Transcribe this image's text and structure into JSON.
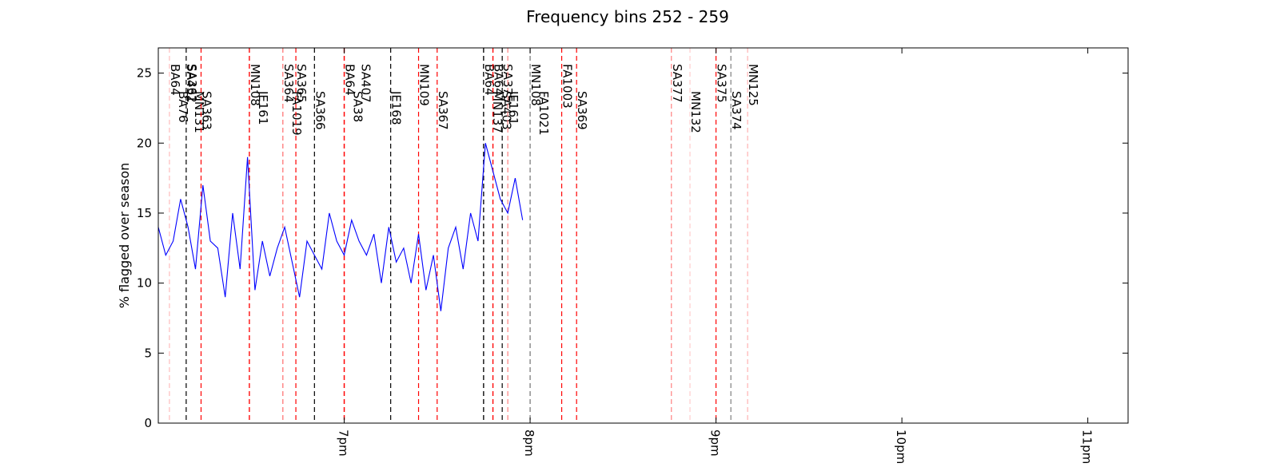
{
  "chart_data": {
    "type": "line",
    "title": "Frequency bins 252 - 259",
    "xlabel": "",
    "ylabel": "% flagged over season",
    "ylim": [
      0,
      26.8
    ],
    "xlim": [
      "18:00",
      "23:13"
    ],
    "yticks": [
      0,
      5,
      10,
      15,
      20,
      25
    ],
    "ytick_labels": [
      "0",
      "5",
      "10",
      "15",
      "20",
      "25"
    ],
    "xticks": [
      "19:00",
      "20:00",
      "21:00",
      "22:00",
      "23:00"
    ],
    "xtick_labels": [
      "7pm",
      "8pm",
      "9pm",
      "10pm",
      "11pm"
    ],
    "grid": false,
    "line_color": "#0000ff",
    "series": [
      {
        "values": [
          [
            18.0,
            14.0
          ],
          [
            18.04,
            12.0
          ],
          [
            18.08,
            13.0
          ],
          [
            18.12,
            16.0
          ],
          [
            18.16,
            14.0
          ],
          [
            18.2,
            11.0
          ],
          [
            18.24,
            17.0
          ],
          [
            18.28,
            13.0
          ],
          [
            18.32,
            12.5
          ],
          [
            18.36,
            9.0
          ],
          [
            18.4,
            15.0
          ],
          [
            18.44,
            11.0
          ],
          [
            18.48,
            19.0
          ],
          [
            18.52,
            9.5
          ],
          [
            18.56,
            13.0
          ],
          [
            18.6,
            10.5
          ],
          [
            18.64,
            12.5
          ],
          [
            18.68,
            14.0
          ],
          [
            18.72,
            11.5
          ],
          [
            18.76,
            9.0
          ],
          [
            18.8,
            13.0
          ],
          [
            18.84,
            12.0
          ],
          [
            18.88,
            11.0
          ],
          [
            18.92,
            15.0
          ],
          [
            18.96,
            13.0
          ],
          [
            19.0,
            12.0
          ],
          [
            19.04,
            14.5
          ],
          [
            19.08,
            13.0
          ],
          [
            19.12,
            12.0
          ],
          [
            19.16,
            13.5
          ],
          [
            19.2,
            10.0
          ],
          [
            19.24,
            14.0
          ],
          [
            19.28,
            11.5
          ],
          [
            19.32,
            12.5
          ],
          [
            19.36,
            10.0
          ],
          [
            19.4,
            13.5
          ],
          [
            19.44,
            9.5
          ],
          [
            19.48,
            12.0
          ],
          [
            19.52,
            8.0
          ],
          [
            19.56,
            12.5
          ],
          [
            19.6,
            14.0
          ],
          [
            19.64,
            11.0
          ],
          [
            19.68,
            15.0
          ],
          [
            19.72,
            13.0
          ],
          [
            19.76,
            20.0
          ],
          [
            19.8,
            18.0
          ],
          [
            19.84,
            16.0
          ],
          [
            19.88,
            15.0
          ],
          [
            19.92,
            17.5
          ],
          [
            19.96,
            14.5
          ]
        ]
      }
    ],
    "markers": [
      {
        "label": "BA64",
        "hour": 18.06,
        "color": "#ffcccc"
      },
      {
        "label": "BA76",
        "hour": 18.06,
        "color": "#ffcccc"
      },
      {
        "label": "SA431",
        "hour": 18.06,
        "color": "#ffcccc"
      },
      {
        "label": "MN131",
        "hour": 18.06,
        "color": "#ffcccc"
      },
      {
        "label": "SA362",
        "hour": 18.15,
        "color": "#000000"
      },
      {
        "label": "SA363",
        "hour": 18.23,
        "color": "#ff0000"
      },
      {
        "label": "MN108",
        "hour": 18.49,
        "color": "#ff0000"
      },
      {
        "label": "JE161",
        "hour": 18.49,
        "color": "#ff0000"
      },
      {
        "label": "SA364",
        "hour": 18.67,
        "color": "#ff8080"
      },
      {
        "label": "FA1019",
        "hour": 18.67,
        "color": "#ff8080"
      },
      {
        "label": "SA365",
        "hour": 18.74,
        "color": "#ff0000"
      },
      {
        "label": "SA366",
        "hour": 18.84,
        "color": "#000000"
      },
      {
        "label": "BA64",
        "hour": 19.0,
        "color": "#ff0000"
      },
      {
        "label": "SA38",
        "hour": 19.0,
        "color": "#ff0000"
      },
      {
        "label": "SA407",
        "hour": 19.0,
        "color": "#ff0000"
      },
      {
        "label": "JE168",
        "hour": 19.25,
        "color": "#000000"
      },
      {
        "label": "MN109",
        "hour": 19.4,
        "color": "#ff0000"
      },
      {
        "label": "SA367",
        "hour": 19.5,
        "color": "#ff0000"
      },
      {
        "label": "BA64",
        "hour": 19.75,
        "color": "#000000"
      },
      {
        "label": "MN137",
        "hour": 19.75,
        "color": "#000000"
      },
      {
        "label": "BA64",
        "hour": 19.8,
        "color": "#ff0000"
      },
      {
        "label": "SA403",
        "hour": 19.8,
        "color": "#ff0000"
      },
      {
        "label": "SA375",
        "hour": 19.85,
        "color": "#000000"
      },
      {
        "label": "JE161",
        "hour": 19.88,
        "color": "#ff8080"
      },
      {
        "label": "MN108",
        "hour": 20.0,
        "color": "#808080"
      },
      {
        "label": "FA1021",
        "hour": 20.0,
        "color": "#808080"
      },
      {
        "label": "FA1003",
        "hour": 20.17,
        "color": "#ff0000"
      },
      {
        "label": "SA369",
        "hour": 20.25,
        "color": "#ff0000"
      },
      {
        "label": "SA377",
        "hour": 20.76,
        "color": "#ff8080"
      },
      {
        "label": "MN132",
        "hour": 20.86,
        "color": "#ffcccc"
      },
      {
        "label": "SA375",
        "hour": 21.0,
        "color": "#ff0000"
      },
      {
        "label": "SA374",
        "hour": 21.08,
        "color": "#808080"
      },
      {
        "label": "MN125",
        "hour": 21.17,
        "color": "#ffb0b0"
      }
    ]
  }
}
